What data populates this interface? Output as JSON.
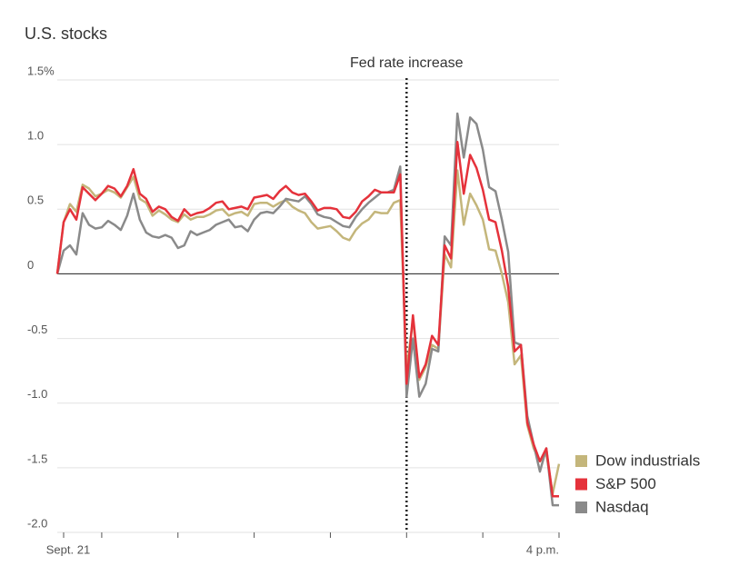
{
  "chart_data": {
    "type": "line",
    "title": "U.S. stocks",
    "x": [
      -5,
      0,
      5,
      10,
      15,
      20,
      25,
      30,
      35,
      40,
      45,
      50,
      55,
      60,
      65,
      70,
      75,
      80,
      85,
      90,
      95,
      100,
      105,
      110,
      115,
      120,
      125,
      130,
      135,
      140,
      145,
      150,
      155,
      160,
      165,
      170,
      175,
      180,
      185,
      190,
      195,
      200,
      205,
      210,
      215,
      220,
      225,
      230,
      235,
      240,
      245,
      250,
      255,
      260,
      265,
      270,
      275,
      280,
      285,
      290,
      295,
      300,
      305,
      310,
      315,
      320,
      325,
      330,
      335,
      340,
      345,
      350,
      355,
      360,
      365,
      370,
      375,
      380,
      385,
      390
    ],
    "series": [
      {
        "name": "Dow industrials",
        "color": "#c4b67b",
        "values": [
          0,
          0.4,
          0.54,
          0.48,
          0.69,
          0.66,
          0.6,
          0.62,
          0.65,
          0.63,
          0.59,
          0.67,
          0.75,
          0.58,
          0.55,
          0.45,
          0.49,
          0.46,
          0.42,
          0.4,
          0.46,
          0.42,
          0.44,
          0.44,
          0.46,
          0.49,
          0.5,
          0.45,
          0.47,
          0.48,
          0.45,
          0.54,
          0.55,
          0.55,
          0.52,
          0.55,
          0.57,
          0.52,
          0.49,
          0.47,
          0.4,
          0.35,
          0.36,
          0.37,
          0.33,
          0.28,
          0.26,
          0.34,
          0.39,
          0.42,
          0.48,
          0.47,
          0.47,
          0.55,
          0.57,
          -0.75,
          -0.35,
          -0.82,
          -0.72,
          -0.55,
          -0.58,
          0.15,
          0.05,
          0.8,
          0.38,
          0.62,
          0.53,
          0.42,
          0.19,
          0.18,
          0.0,
          -0.22,
          -0.7,
          -0.63,
          -1.17,
          -1.35,
          -1.45,
          -1.39,
          -1.7,
          -1.47
        ]
      },
      {
        "name": "S&P 500",
        "color": "#e5323b",
        "values": [
          0,
          0.4,
          0.5,
          0.42,
          0.67,
          0.62,
          0.57,
          0.62,
          0.68,
          0.66,
          0.6,
          0.68,
          0.81,
          0.62,
          0.58,
          0.48,
          0.52,
          0.5,
          0.44,
          0.41,
          0.5,
          0.45,
          0.47,
          0.48,
          0.51,
          0.55,
          0.56,
          0.5,
          0.51,
          0.52,
          0.5,
          0.59,
          0.6,
          0.61,
          0.58,
          0.64,
          0.68,
          0.63,
          0.61,
          0.62,
          0.56,
          0.49,
          0.51,
          0.51,
          0.5,
          0.44,
          0.43,
          0.48,
          0.56,
          0.6,
          0.65,
          0.63,
          0.63,
          0.63,
          0.77,
          -0.85,
          -0.32,
          -0.8,
          -0.7,
          -0.48,
          -0.55,
          0.22,
          0.12,
          1.02,
          0.62,
          0.92,
          0.82,
          0.65,
          0.42,
          0.4,
          0.18,
          -0.1,
          -0.6,
          -0.55,
          -1.15,
          -1.32,
          -1.45,
          -1.35,
          -1.72,
          -1.72
        ]
      },
      {
        "name": "Nasdaq",
        "color": "#8a8a8a",
        "values": [
          0,
          0.18,
          0.22,
          0.15,
          0.47,
          0.38,
          0.35,
          0.36,
          0.41,
          0.38,
          0.34,
          0.45,
          0.62,
          0.42,
          0.32,
          0.29,
          0.28,
          0.3,
          0.28,
          0.2,
          0.22,
          0.33,
          0.3,
          0.32,
          0.34,
          0.38,
          0.4,
          0.42,
          0.36,
          0.37,
          0.33,
          0.42,
          0.47,
          0.48,
          0.47,
          0.52,
          0.58,
          0.57,
          0.56,
          0.6,
          0.54,
          0.46,
          0.44,
          0.43,
          0.4,
          0.37,
          0.36,
          0.44,
          0.5,
          0.55,
          0.59,
          0.63,
          0.63,
          0.65,
          0.83,
          -0.95,
          -0.5,
          -0.95,
          -0.85,
          -0.58,
          -0.6,
          0.29,
          0.22,
          1.24,
          0.9,
          1.21,
          1.16,
          0.96,
          0.67,
          0.64,
          0.42,
          0.17,
          -0.53,
          -0.55,
          -1.1,
          -1.32,
          -1.53,
          -1.35,
          -1.79,
          -1.79
        ]
      }
    ],
    "xlim": [
      -5,
      390
    ],
    "xticks": [
      {
        "value": 0,
        "label": "Sept. 21"
      },
      {
        "value": 390,
        "label": "4 p.m."
      }
    ],
    "xminor_ticks": [
      30,
      90,
      150,
      210,
      270,
      330
    ],
    "ylim": [
      -2.0,
      1.5
    ],
    "yticks": [
      {
        "value": 1.5,
        "label": "1.5%"
      },
      {
        "value": 1.0,
        "label": "1.0"
      },
      {
        "value": 0.5,
        "label": "0.5"
      },
      0,
      -0.5,
      {
        "value": -1.0,
        "label": "-1.0"
      },
      -1.5,
      {
        "value": -2.0,
        "label": "-2.0"
      }
    ],
    "grid": true,
    "zero_line": true,
    "legend": "lower right",
    "annotations": [
      {
        "text": "Fed rate increase",
        "x": 270
      }
    ]
  }
}
